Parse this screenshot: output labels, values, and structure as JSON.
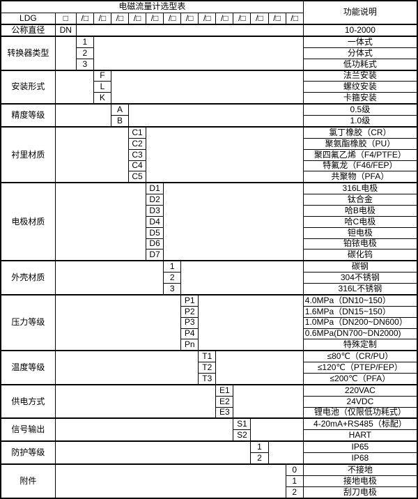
{
  "colors": {
    "border": "#000000",
    "text": "#000000",
    "background": "#ffffff"
  },
  "table": {
    "title": "电磁流量计选型表",
    "function_header": "功能说明",
    "model_row": {
      "prefix": "LDG",
      "box": "□",
      "slots": [
        "/□",
        "/□",
        "/□",
        "/□",
        "/□",
        "/□",
        "/□",
        "/□",
        "/□",
        "/□",
        "/□",
        "/□",
        "/□"
      ]
    },
    "dn_row": {
      "label": "公称直径",
      "code": "DN",
      "function": "10-2000"
    },
    "sections": [
      {
        "label": "转换器类型",
        "column": 1,
        "options": [
          {
            "code": "1",
            "function": "一体式"
          },
          {
            "code": "2",
            "function": "分体式"
          },
          {
            "code": "3",
            "function": "低功耗式"
          }
        ]
      },
      {
        "label": "安装形式",
        "column": 2,
        "options": [
          {
            "code": "F",
            "function": "法兰安装"
          },
          {
            "code": "L",
            "function": "螺纹安装"
          },
          {
            "code": "K",
            "function": "卡箍安装"
          }
        ]
      },
      {
        "label": "精度等级",
        "column": 3,
        "options": [
          {
            "code": "A",
            "function": "0.5级"
          },
          {
            "code": "B",
            "function": "1.0级"
          }
        ]
      },
      {
        "label": "衬里材质",
        "column": 4,
        "options": [
          {
            "code": "C1",
            "function": "氯丁橡胶（CR）"
          },
          {
            "code": "C2",
            "function": "聚氨酯橡胶（PU）"
          },
          {
            "code": "C3",
            "function": "聚四氟乙烯（F4/PTFE）"
          },
          {
            "code": "C4",
            "function": "特氟龙（F46/FEP）"
          },
          {
            "code": "C5",
            "function": "共聚物（PFA）"
          }
        ]
      },
      {
        "label": "电极材质",
        "column": 5,
        "options": [
          {
            "code": "D1",
            "function": "316L电极"
          },
          {
            "code": "D2",
            "function": "钛合金"
          },
          {
            "code": "D3",
            "function": "哈B电极"
          },
          {
            "code": "D4",
            "function": "哈C电极"
          },
          {
            "code": "D5",
            "function": "钽电极"
          },
          {
            "code": "D6",
            "function": "铂铱电极"
          },
          {
            "code": "D7",
            "function": "碳化钨"
          }
        ]
      },
      {
        "label": "外壳材质",
        "column": 6,
        "options": [
          {
            "code": "1",
            "function": "碳钢"
          },
          {
            "code": "2",
            "function": "304不锈钢"
          },
          {
            "code": "3",
            "function": "316L不锈钢"
          }
        ]
      },
      {
        "label": "压力等级",
        "column": 7,
        "options": [
          {
            "code": "P1",
            "function": "4.0MPa（DN10~150）",
            "align": "left"
          },
          {
            "code": "P2",
            "function": "1.6MPa（DN15~150）",
            "align": "left"
          },
          {
            "code": "P3",
            "function": "1.0MPa（DN200~DN600）",
            "align": "left"
          },
          {
            "code": "P4",
            "function": "0.6MPa(DN700~DN2000)",
            "align": "left"
          },
          {
            "code": "Pn",
            "function": "特殊定制"
          }
        ]
      },
      {
        "label": "温度等级",
        "column": 8,
        "options": [
          {
            "code": "T1",
            "function": "≤80℃（CR/PU）"
          },
          {
            "code": "T2",
            "function": "≤120℃（PTEP/FEP）"
          },
          {
            "code": "T3",
            "function": "≤200℃（PFA）"
          }
        ]
      },
      {
        "label": "供电方式",
        "column": 9,
        "options": [
          {
            "code": "E1",
            "function": "220VAC"
          },
          {
            "code": "E2",
            "function": "24VDC"
          },
          {
            "code": "E3",
            "function": "锂电池（仅限低功耗式）"
          }
        ]
      },
      {
        "label": "信号输出",
        "column": 10,
        "options": [
          {
            "code": "S1",
            "function": "4-20mA+RS485（标配）"
          },
          {
            "code": "S2",
            "function": "HART"
          }
        ]
      },
      {
        "label": "防护等级",
        "column": 11,
        "options": [
          {
            "code": "1",
            "function": "IP65"
          },
          {
            "code": "2",
            "function": "IP68"
          }
        ]
      },
      {
        "label": "附件",
        "column": 13,
        "options": [
          {
            "code": "0",
            "function": "不接地"
          },
          {
            "code": "1",
            "function": "接地电极"
          },
          {
            "code": "2",
            "function": "刮刀电极"
          }
        ]
      }
    ]
  }
}
